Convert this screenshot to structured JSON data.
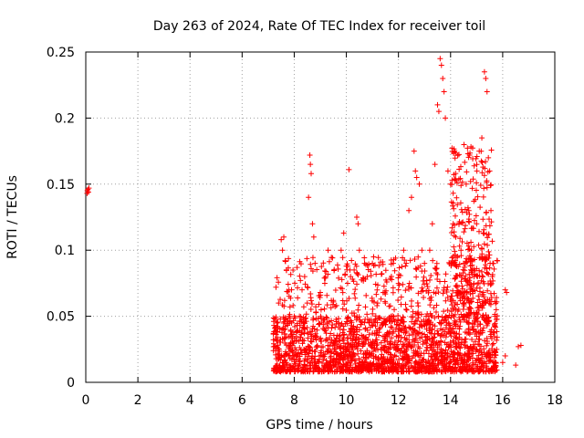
{
  "chart_data": {
    "type": "scatter",
    "title": "Day 263 of 2024, Rate Of TEC Index for receiver toil",
    "xlabel": "GPS time / hours",
    "ylabel": "ROTI / TECUs",
    "xlim": [
      0,
      18
    ],
    "ylim": [
      0,
      0.25
    ],
    "xticks": [
      0,
      2,
      4,
      6,
      8,
      10,
      12,
      14,
      16,
      18
    ],
    "yticks": [
      0,
      0.05,
      0.1,
      0.15,
      0.2,
      0.25
    ],
    "grid": true,
    "marker": "+",
    "series": [
      {
        "name": "ROTI",
        "color": "#ff0000",
        "points": [
          [
            0.05,
            0.143
          ],
          [
            0.08,
            0.146
          ],
          [
            0.1,
            0.144
          ],
          [
            0.12,
            0.147
          ],
          [
            0.06,
            0.145
          ],
          [
            7.3,
            0.072
          ],
          [
            7.4,
            0.06
          ],
          [
            7.5,
            0.108
          ],
          [
            7.55,
            0.1
          ],
          [
            7.6,
            0.11
          ],
          [
            7.65,
            0.092
          ],
          [
            7.7,
            0.085
          ],
          [
            7.8,
            0.05
          ],
          [
            7.9,
            0.045
          ],
          [
            8.0,
            0.05
          ],
          [
            8.2,
            0.05
          ],
          [
            8.3,
            0.07
          ],
          [
            8.4,
            0.08
          ],
          [
            8.5,
            0.06
          ],
          [
            8.55,
            0.14
          ],
          [
            8.6,
            0.172
          ],
          [
            8.62,
            0.165
          ],
          [
            8.65,
            0.158
          ],
          [
            8.7,
            0.12
          ],
          [
            8.75,
            0.11
          ],
          [
            8.8,
            0.09
          ],
          [
            9.0,
            0.068
          ],
          [
            9.2,
            0.08
          ],
          [
            9.3,
            0.1
          ],
          [
            9.5,
            0.062
          ],
          [
            9.8,
            0.1
          ],
          [
            9.9,
            0.113
          ],
          [
            10.0,
            0.088
          ],
          [
            10.1,
            0.161
          ],
          [
            10.3,
            0.085
          ],
          [
            10.4,
            0.125
          ],
          [
            10.45,
            0.12
          ],
          [
            10.5,
            0.1
          ],
          [
            10.7,
            0.09
          ],
          [
            10.8,
            0.08
          ],
          [
            11.0,
            0.09
          ],
          [
            11.2,
            0.06
          ],
          [
            11.5,
            0.06
          ],
          [
            11.8,
            0.09
          ],
          [
            12.0,
            0.07
          ],
          [
            12.2,
            0.1
          ],
          [
            12.3,
            0.09
          ],
          [
            12.4,
            0.13
          ],
          [
            12.5,
            0.14
          ],
          [
            12.6,
            0.175
          ],
          [
            12.65,
            0.16
          ],
          [
            12.7,
            0.155
          ],
          [
            12.8,
            0.15
          ],
          [
            12.9,
            0.1
          ],
          [
            13.0,
            0.09
          ],
          [
            13.2,
            0.1
          ],
          [
            13.3,
            0.12
          ],
          [
            13.4,
            0.165
          ],
          [
            13.5,
            0.21
          ],
          [
            13.55,
            0.205
          ],
          [
            13.6,
            0.245
          ],
          [
            13.65,
            0.24
          ],
          [
            13.7,
            0.23
          ],
          [
            13.75,
            0.22
          ],
          [
            13.8,
            0.2
          ],
          [
            13.9,
            0.16
          ],
          [
            14.0,
            0.15
          ],
          [
            14.1,
            0.12
          ],
          [
            14.2,
            0.11
          ],
          [
            14.4,
            0.1
          ],
          [
            14.5,
            0.09
          ],
          [
            14.6,
            0.15
          ],
          [
            14.7,
            0.13
          ],
          [
            14.8,
            0.1
          ],
          [
            14.9,
            0.08
          ],
          [
            15.0,
            0.12
          ],
          [
            15.1,
            0.175
          ],
          [
            15.2,
            0.185
          ],
          [
            15.3,
            0.235
          ],
          [
            15.35,
            0.23
          ],
          [
            15.4,
            0.22
          ],
          [
            15.45,
            0.17
          ],
          [
            15.5,
            0.16
          ],
          [
            15.55,
            0.13
          ],
          [
            15.6,
            0.08
          ],
          [
            15.7,
            0.05
          ],
          [
            16.1,
            0.07
          ],
          [
            16.15,
            0.068
          ],
          [
            16.0,
            0.015
          ],
          [
            16.1,
            0.02
          ],
          [
            16.5,
            0.013
          ],
          [
            16.6,
            0.027
          ],
          [
            16.7,
            0.028
          ]
        ],
        "dense_band": {
          "note": "Dense cluster of many + markers between 7.2 h and 15.8 h, ROTI roughly 0.01 to 0.05 TECUs",
          "x_range": [
            7.2,
            15.8
          ],
          "y_range": [
            0.008,
            0.05
          ]
        }
      }
    ]
  }
}
